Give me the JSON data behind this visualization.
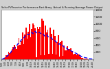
{
  "title": "Solar PV/Inverter Performance East Array  Actual & Running Average Power Output",
  "background_color": "#d0d0d0",
  "plot_bg_color": "#ffffff",
  "bar_color": "#ff0000",
  "line_color": "#0000ff",
  "grid_color": "#ffffff",
  "ylim": [
    0,
    1400
  ],
  "yticks": [
    200,
    400,
    600,
    800,
    1000,
    1200,
    1400
  ],
  "ytick_labels": [
    "200",
    "400",
    "600",
    "800",
    "1000",
    "1200",
    "1400"
  ],
  "n_bars": 80
}
